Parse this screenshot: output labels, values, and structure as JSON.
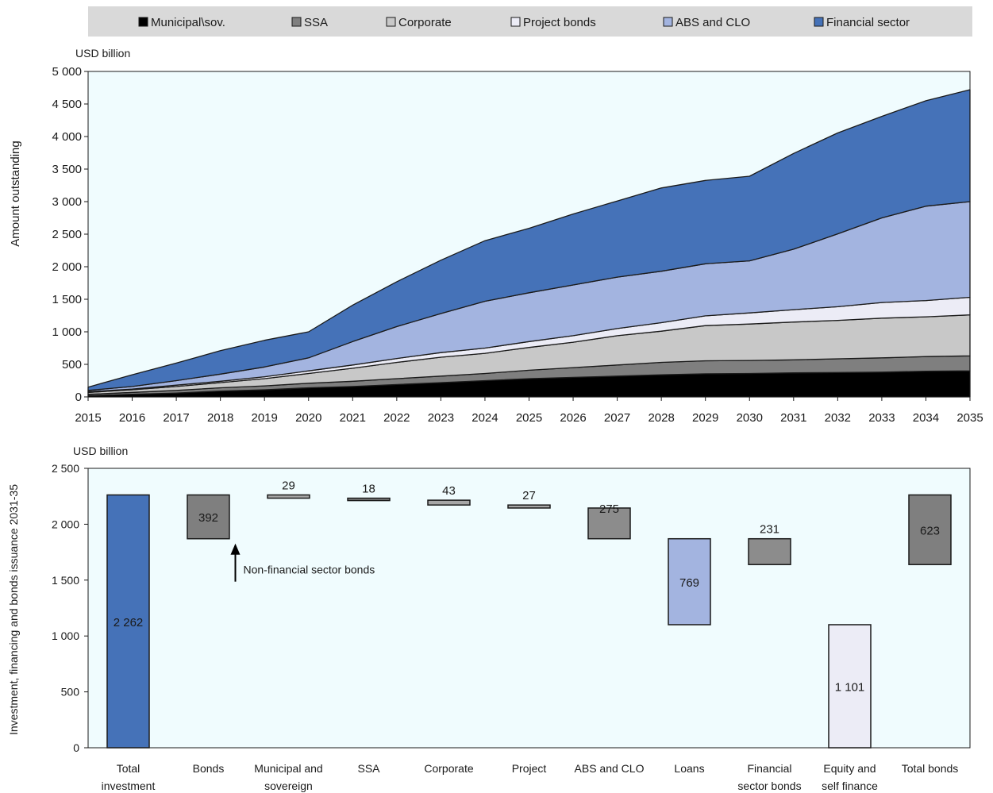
{
  "legend": {
    "items": [
      {
        "label": "Municipal\\sov.",
        "color": "#000000"
      },
      {
        "label": "SSA",
        "color": "#7f7f7f"
      },
      {
        "label": "Corporate",
        "color": "#c8c8c8"
      },
      {
        "label": "Project bonds",
        "color": "#ececf6"
      },
      {
        "label": "ABS and CLO",
        "color": "#a3b4e0"
      },
      {
        "label": "Financial sector",
        "color": "#4572b8"
      }
    ]
  },
  "chart_data": [
    {
      "type": "area",
      "stacked": true,
      "unit_label": "USD billion",
      "ylabel": "Amount outstanding",
      "ylim": [
        0,
        5000
      ],
      "yticks": [
        "0",
        "500",
        "1 000",
        "1 500",
        "2 000",
        "2 500",
        "3 000",
        "3 500",
        "4 000",
        "4 500",
        "5 000"
      ],
      "x": [
        "2015",
        "2016",
        "2017",
        "2018",
        "2019",
        "2020",
        "2021",
        "2022",
        "2023",
        "2024",
        "2025",
        "2026",
        "2027",
        "2028",
        "2029",
        "2030",
        "2031",
        "2032",
        "2033",
        "2034",
        "2035"
      ],
      "plot_background": "#f0fcfe",
      "series": [
        {
          "name": "Municipal\\sov.",
          "color": "#000000",
          "values": [
            20,
            40,
            60,
            90,
            110,
            140,
            160,
            190,
            220,
            250,
            280,
            300,
            320,
            340,
            355,
            360,
            370,
            375,
            380,
            395,
            400
          ]
        },
        {
          "name": "SSA",
          "color": "#7f7f7f",
          "values": [
            20,
            30,
            40,
            50,
            60,
            70,
            80,
            90,
            100,
            110,
            130,
            150,
            170,
            190,
            200,
            200,
            200,
            210,
            220,
            225,
            230
          ]
        },
        {
          "name": "Corporate",
          "color": "#c8c8c8",
          "values": [
            30,
            40,
            60,
            80,
            110,
            150,
            200,
            250,
            290,
            310,
            350,
            390,
            450,
            480,
            540,
            560,
            580,
            590,
            610,
            610,
            630
          ]
        },
        {
          "name": "Project bonds",
          "color": "#ececf6",
          "values": [
            10,
            10,
            20,
            20,
            30,
            40,
            50,
            60,
            70,
            80,
            90,
            100,
            110,
            130,
            150,
            170,
            190,
            210,
            240,
            250,
            270
          ]
        },
        {
          "name": "ABS and CLO",
          "color": "#a3b4e0",
          "values": [
            20,
            40,
            70,
            110,
            150,
            200,
            360,
            490,
            600,
            720,
            750,
            780,
            790,
            790,
            800,
            800,
            930,
            1120,
            1300,
            1450,
            1470
          ]
        },
        {
          "name": "Financial sector",
          "color": "#4572b8",
          "values": [
            50,
            180,
            270,
            360,
            410,
            400,
            560,
            690,
            820,
            930,
            990,
            1090,
            1170,
            1280,
            1280,
            1300,
            1470,
            1550,
            1560,
            1620,
            1720
          ]
        }
      ]
    },
    {
      "type": "bar",
      "subtype": "waterfall",
      "unit_label": "USD billion",
      "ylabel": "Investment, financing and bonds issuance 2031-35",
      "ylim": [
        0,
        2500
      ],
      "yticks": [
        "0",
        "500",
        "1 000",
        "1 500",
        "2 000",
        "2 500"
      ],
      "plot_background": "#f0fcfe",
      "bars": [
        {
          "category": "Total investment",
          "bottom": 0,
          "top": 2262,
          "label": "2 262",
          "label_pos": "inside",
          "label_color": "#ffffff",
          "color": "#4572b8"
        },
        {
          "category": "Bonds",
          "bottom": 1870,
          "top": 2262,
          "label": "392",
          "label_pos": "inside",
          "label_color": "#ffffff",
          "color": "#7f7f7f"
        },
        {
          "category": "Municipal and sovereign",
          "bottom": 2233,
          "top": 2262,
          "label": "29",
          "label_pos": "above",
          "label_color": "#1a1a1a",
          "color": "#a6a6a6"
        },
        {
          "category": "SSA",
          "bottom": 2215,
          "top": 2233,
          "label": "18",
          "label_pos": "above",
          "label_color": "#1a1a1a",
          "color": "#7f7f7f"
        },
        {
          "category": "Corporate",
          "bottom": 2172,
          "top": 2215,
          "label": "43",
          "label_pos": "above",
          "label_color": "#1a1a1a",
          "color": "#a6a6a6"
        },
        {
          "category": "Project",
          "bottom": 2145,
          "top": 2172,
          "label": "27",
          "label_pos": "above",
          "label_color": "#1a1a1a",
          "color": "#a6a6a6"
        },
        {
          "category": "ABS and CLO",
          "bottom": 1870,
          "top": 2145,
          "label": "275",
          "label_pos": "top",
          "label_color": "#1a1a1a",
          "color": "#8c8c8c"
        },
        {
          "category": "Loans",
          "bottom": 1101,
          "top": 1870,
          "label": "769",
          "label_pos": "inside",
          "label_color": "#1a1a1a",
          "color": "#a3b4e0"
        },
        {
          "category": "Financial sector bonds",
          "bottom": 1639,
          "top": 1870,
          "label": "231",
          "label_pos": "above",
          "label_color": "#1a1a1a",
          "color": "#8c8c8c"
        },
        {
          "category": "Equity and self finance",
          "bottom": 0,
          "top": 1101,
          "label": "1 101",
          "label_pos": "inside",
          "label_color": "#1a1a1a",
          "color": "#ececf6"
        },
        {
          "category": "Total bonds",
          "bottom": 1639,
          "top": 2262,
          "label": "623",
          "label_pos": "inside",
          "label_color": "#ffffff",
          "color": "#7f7f7f"
        }
      ],
      "categories": [
        [
          "Total",
          "investment"
        ],
        [
          "Bonds"
        ],
        [
          "Municipal and",
          "sovereign"
        ],
        [
          "SSA"
        ],
        [
          "Corporate"
        ],
        [
          "Project"
        ],
        [
          "ABS and CLO"
        ],
        [
          "Loans"
        ],
        [
          "Financial",
          "sector bonds"
        ],
        [
          "Equity and",
          "self finance"
        ],
        [
          "Total bonds"
        ]
      ],
      "annotation": {
        "text": "Non-financial sector bonds",
        "target_category": "Bonds",
        "at_value": 1870
      }
    }
  ]
}
